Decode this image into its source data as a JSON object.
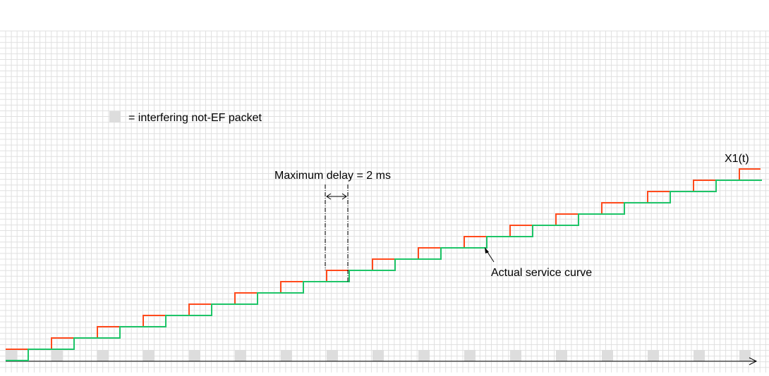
{
  "legend": {
    "text": "= interfering not-EF packet"
  },
  "annotations": {
    "max_delay": "Maximum delay = 2 ms",
    "service_curve": "Actual service curve",
    "curve_label": "X1(t)"
  },
  "colors": {
    "arrival_curve": "#ff4a1c",
    "service_curve": "#1ec468",
    "packet": "#dddddd",
    "grid": "#e0e0e0",
    "axis": "#000000"
  },
  "steps": 16
}
